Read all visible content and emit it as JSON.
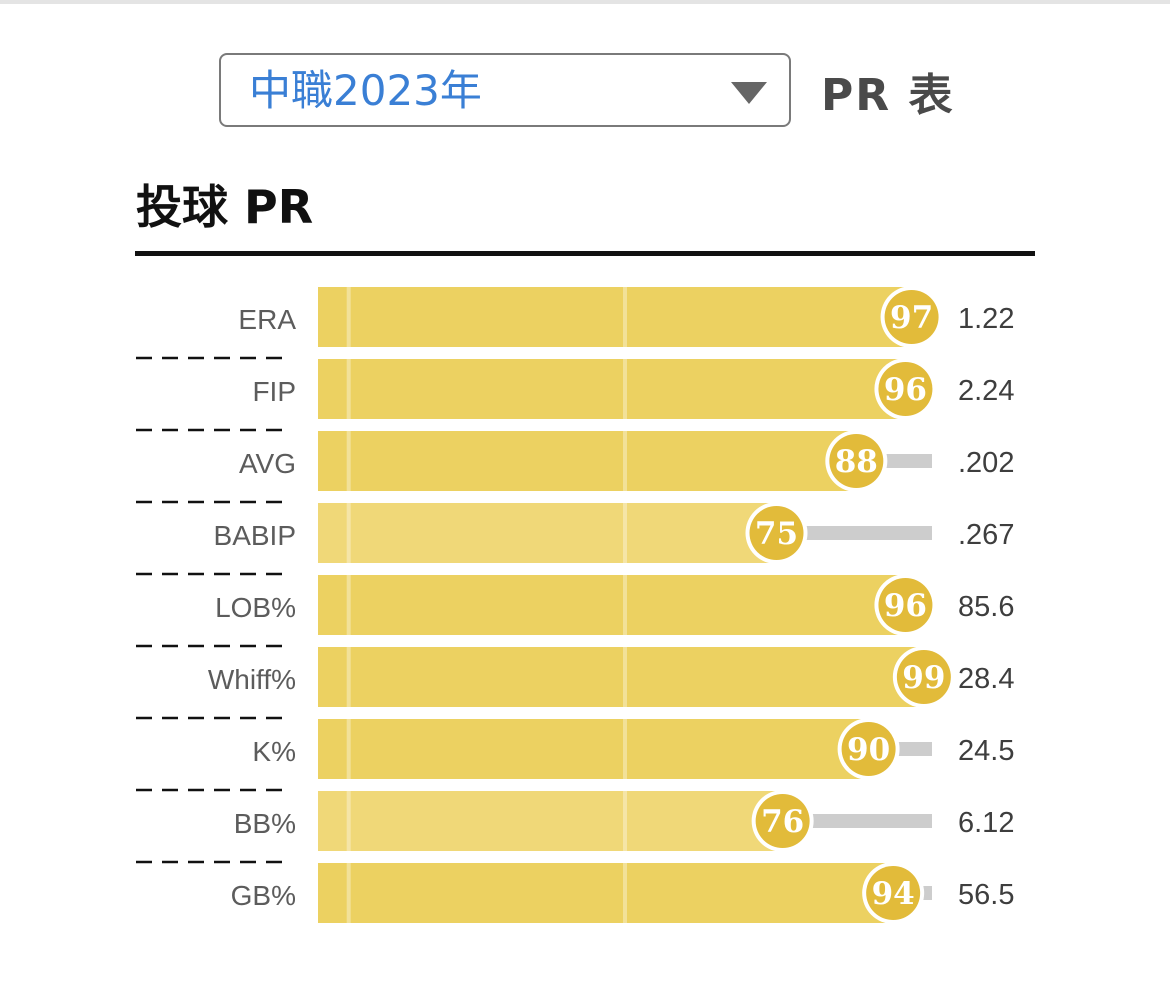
{
  "selector": {
    "value": "中職2023年",
    "icon": "chevron-down-icon"
  },
  "header": {
    "table_label": "PR 表"
  },
  "section": {
    "title": "投球 PR"
  },
  "colors": {
    "bar_high": "#ecd161",
    "bar_mid": "#f0d878",
    "badge": "#e2bb3a",
    "track": "#cdcdcd",
    "label": "#5c5c5c",
    "value": "#3e3e3e"
  },
  "chart_data": {
    "type": "bar",
    "orientation": "horizontal",
    "title": "投球 PR",
    "xlim": [
      0,
      100
    ],
    "categories": [
      "ERA",
      "FIP",
      "AVG",
      "BABIP",
      "LOB%",
      "Whiff%",
      "K%",
      "BB%",
      "GB%"
    ],
    "series": [
      {
        "values": [
          97,
          96,
          88,
          75,
          96,
          99,
          90,
          76,
          94
        ]
      }
    ],
    "stat_values": [
      "1.22",
      "2.24",
      ".202",
      ".267",
      "85.6",
      "28.4",
      "24.5",
      "6.12",
      "56.5"
    ],
    "reference_lines": [
      5,
      50
    ]
  }
}
